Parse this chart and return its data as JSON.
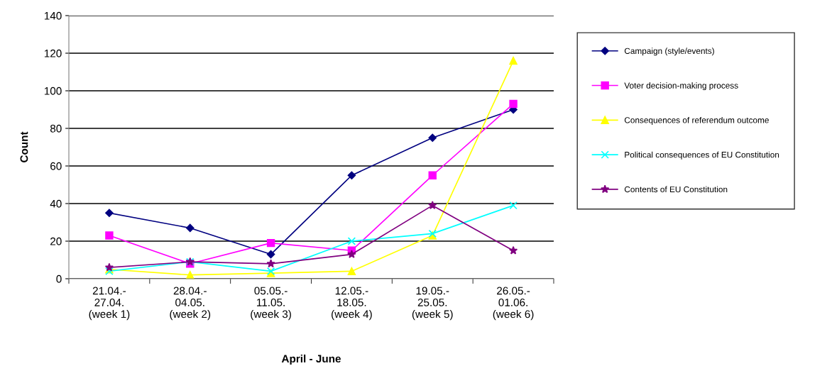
{
  "chart_data": {
    "type": "line",
    "xlabel": "April - June",
    "ylabel": "Count",
    "categories": [
      "21.04.-\n27.04.\n(week 1)",
      "28.04.-\n04.05.\n(week 2)",
      "05.05.-\n11.05.\n(week 3)",
      "12.05.-\n18.05.\n(week 4)",
      "19.05.-\n25.05.\n(week 5)",
      "26.05.-\n01.06.\n(week 6)"
    ],
    "series": [
      {
        "name": "Campaign (style/events)",
        "color": "#000080",
        "marker": "diamond",
        "values": [
          35,
          27,
          13,
          55,
          75,
          90
        ]
      },
      {
        "name": "Voter decision-making process",
        "color": "#ff00ff",
        "marker": "square",
        "values": [
          23,
          8,
          19,
          15,
          55,
          93
        ]
      },
      {
        "name": "Consequences of referendum outcome",
        "color": "#ffff00",
        "marker": "triangle",
        "values": [
          5,
          2,
          3,
          4,
          23,
          116
        ]
      },
      {
        "name": "Political consequences of EU Constitution",
        "color": "#00ffff",
        "marker": "cross",
        "values": [
          4,
          9,
          4,
          20,
          24,
          39
        ]
      },
      {
        "name": "Contents of EU Constitution",
        "color": "#800080",
        "marker": "star",
        "values": [
          6,
          9,
          8,
          13,
          39,
          15
        ]
      }
    ],
    "ylim": [
      0,
      140
    ],
    "yticks": [
      0,
      20,
      40,
      60,
      80,
      100,
      120,
      140
    ],
    "grid": "y",
    "legend": "right",
    "line_style": "solid"
  }
}
